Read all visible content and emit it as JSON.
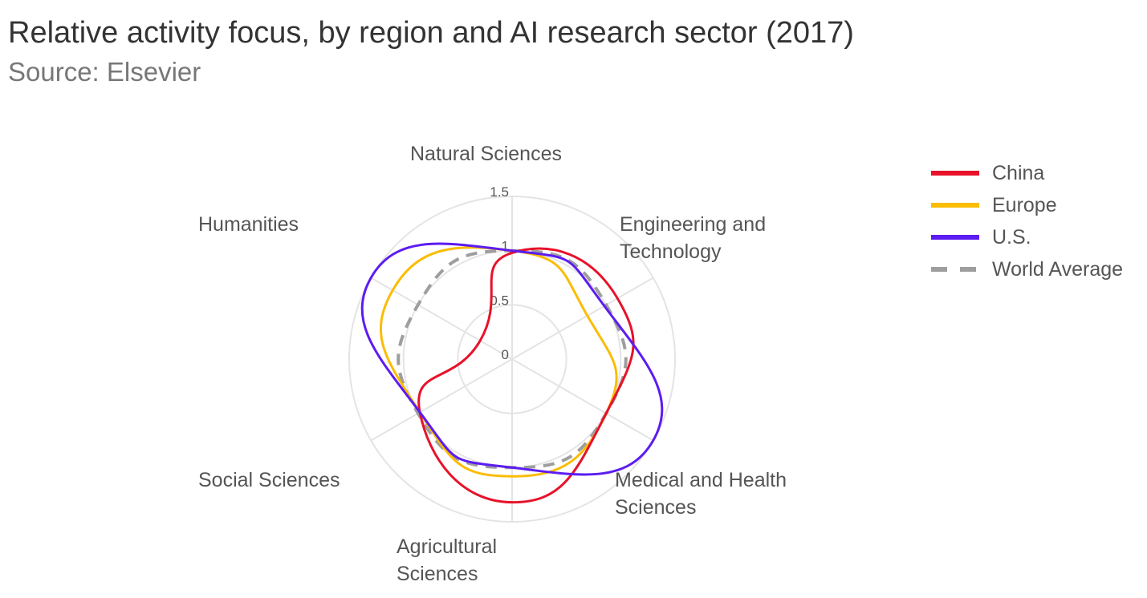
{
  "title": "Relative activity focus, by region and AI research sector (2017)",
  "subtitle": "Source: Elsevier",
  "chart_data": {
    "type": "radar",
    "title": "Relative activity focus, by region and AI research sector (2017)",
    "subtitle": "Source: Elsevier",
    "categories": [
      "Natural Sciences",
      "Engineering and Technology",
      "Medical and Health Sciences",
      "Agricultural Sciences",
      "Social Sciences",
      "Humanities"
    ],
    "radial_ticks": [
      "0",
      "0.5",
      "1",
      "1.5"
    ],
    "rlim": [
      0,
      1.5
    ],
    "grid": true,
    "legend_position": "right",
    "series": [
      {
        "name": "China",
        "color": "#e8122a",
        "dashed": false,
        "values": [
          0.98,
          1.12,
          1.0,
          1.32,
          0.98,
          0.34
        ]
      },
      {
        "name": "Europe",
        "color": "#fbbc04",
        "dashed": false,
        "values": [
          1.0,
          0.8,
          1.0,
          1.08,
          0.98,
          1.27
        ]
      },
      {
        "name": "U.S.",
        "color": "#5c1cf2",
        "dashed": false,
        "values": [
          1.0,
          0.98,
          1.5,
          1.0,
          0.98,
          1.5
        ]
      },
      {
        "name": "World Average",
        "color": "#9e9e9e",
        "dashed": true,
        "values": [
          1.0,
          1.0,
          1.0,
          1.0,
          1.0,
          1.0
        ]
      }
    ]
  }
}
